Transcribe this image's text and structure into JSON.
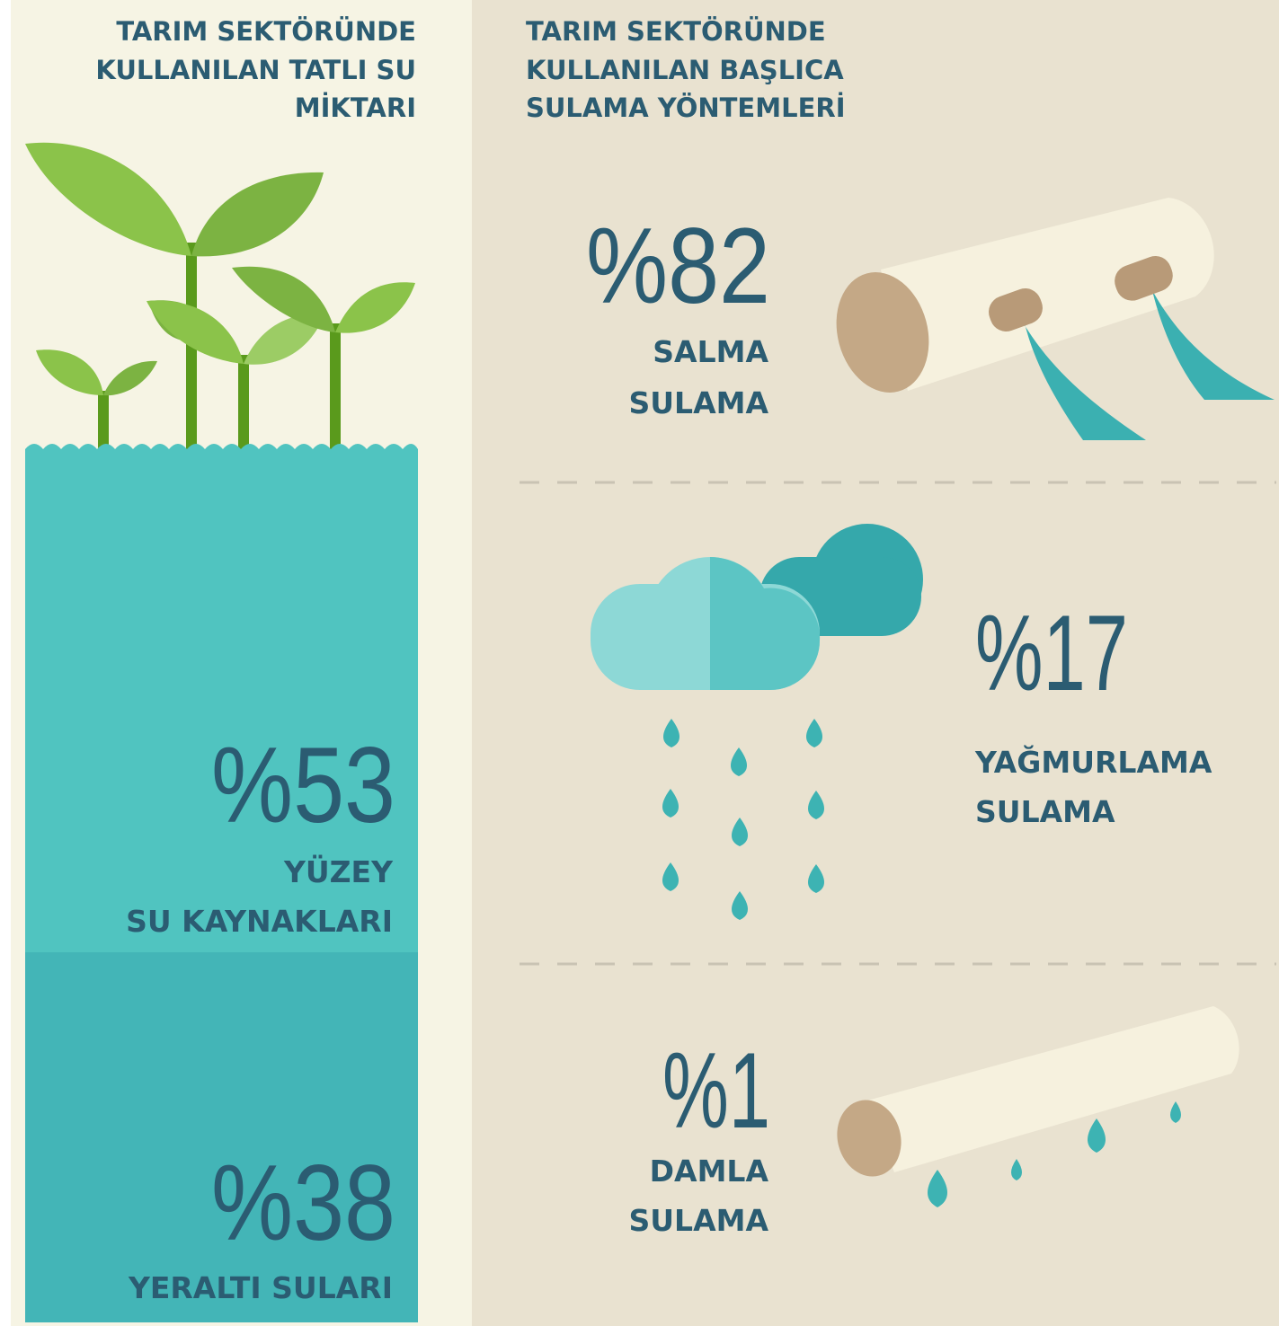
{
  "left": {
    "title": [
      "TARIM SEKTÖRÜNDE",
      "KULLANILAN TATLI SU",
      "MİKTARI"
    ],
    "items": [
      {
        "value": "%53",
        "label": [
          "YÜZEY",
          "SU KAYNAKLARI"
        ]
      },
      {
        "value": "%38",
        "label": [
          "YERALTI SULARI"
        ]
      }
    ]
  },
  "right": {
    "title": [
      "TARIM SEKTÖRÜNDE",
      "KULLANILAN BAŞLICA",
      "SULAMA YÖNTEMLERİ"
    ],
    "items": [
      {
        "value": "%82",
        "label": [
          "SALMA",
          "SULAMA"
        ]
      },
      {
        "value": "%17",
        "label": [
          "YAĞMURLAMA",
          "SULAMA"
        ]
      },
      {
        "value": "%1",
        "label": [
          "DAMLA",
          "SULAMA"
        ]
      }
    ]
  }
}
